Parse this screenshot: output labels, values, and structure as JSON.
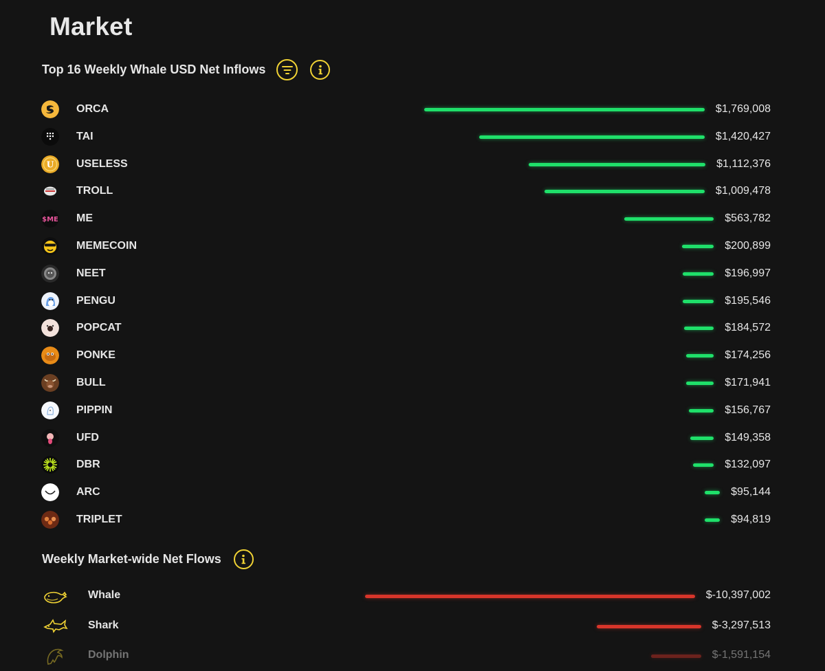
{
  "page": {
    "title": "Market"
  },
  "inflows": {
    "title": "Top 16 Weekly Whale USD Net Inflows",
    "filter_icon": "filter-icon",
    "info_icon": "info-icon",
    "accent": "#f0d234",
    "bar_color": "#1fe06a",
    "rows": [
      {
        "name": "ORCA",
        "value": "$1,769,008",
        "amount": 1769008,
        "icon": "orca-icon"
      },
      {
        "name": "TAI",
        "value": "$1,420,427",
        "amount": 1420427,
        "icon": "tai-icon"
      },
      {
        "name": "USELESS",
        "value": "$1,112,376",
        "amount": 1112376,
        "icon": "useless-icon"
      },
      {
        "name": "TROLL",
        "value": "$1,009,478",
        "amount": 1009478,
        "icon": "troll-icon"
      },
      {
        "name": "ME",
        "value": "$563,782",
        "amount": 563782,
        "icon": "me-icon"
      },
      {
        "name": "MEMECOIN",
        "value": "$200,899",
        "amount": 200899,
        "icon": "memecoin-icon"
      },
      {
        "name": "NEET",
        "value": "$196,997",
        "amount": 196997,
        "icon": "neet-icon"
      },
      {
        "name": "PENGU",
        "value": "$195,546",
        "amount": 195546,
        "icon": "pengu-icon"
      },
      {
        "name": "POPCAT",
        "value": "$184,572",
        "amount": 184572,
        "icon": "popcat-icon"
      },
      {
        "name": "PONKE",
        "value": "$174,256",
        "amount": 174256,
        "icon": "ponke-icon"
      },
      {
        "name": "BULL",
        "value": "$171,941",
        "amount": 171941,
        "icon": "bull-icon"
      },
      {
        "name": "PIPPIN",
        "value": "$156,767",
        "amount": 156767,
        "icon": "pippin-icon"
      },
      {
        "name": "UFD",
        "value": "$149,358",
        "amount": 149358,
        "icon": "ufd-icon"
      },
      {
        "name": "DBR",
        "value": "$132,097",
        "amount": 132097,
        "icon": "dbr-icon"
      },
      {
        "name": "ARC",
        "value": "$95,144",
        "amount": 95144,
        "icon": "arc-icon"
      },
      {
        "name": "TRIPLET",
        "value": "$94,819",
        "amount": 94819,
        "icon": "triplet-icon"
      }
    ]
  },
  "flows": {
    "title": "Weekly Market-wide Net Flows",
    "info_icon": "info-icon",
    "bar_color": "#d8352a",
    "rows": [
      {
        "name": "Whale",
        "value": "$-10,397,002",
        "amount": -10397002,
        "icon": "whale-icon"
      },
      {
        "name": "Shark",
        "value": "$-3,297,513",
        "amount": -3297513,
        "icon": "shark-icon"
      },
      {
        "name": "Dolphin",
        "value": "$-1,591,154",
        "amount": -1591154,
        "icon": "dolphin-icon"
      }
    ]
  }
}
